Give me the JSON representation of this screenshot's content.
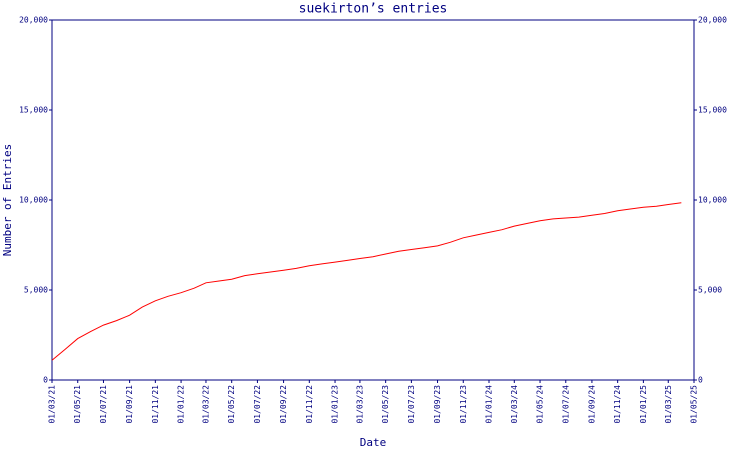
{
  "chart_data": {
    "type": "line",
    "title": "suekirton’s entries",
    "xlabel": "Date",
    "ylabel": "Number of Entries",
    "x": [
      "01/03/21",
      "01/04/21",
      "01/05/21",
      "01/06/21",
      "01/07/21",
      "01/08/21",
      "01/09/21",
      "01/10/21",
      "01/11/21",
      "01/12/21",
      "01/01/22",
      "01/02/22",
      "01/03/22",
      "01/04/22",
      "01/05/22",
      "01/06/22",
      "01/07/22",
      "01/08/22",
      "01/09/22",
      "01/10/22",
      "01/11/22",
      "01/12/22",
      "01/01/23",
      "01/02/23",
      "01/03/23",
      "01/04/23",
      "01/05/23",
      "01/06/23",
      "01/07/23",
      "01/08/23",
      "01/09/23",
      "01/10/23",
      "01/11/23",
      "01/12/23",
      "01/01/24",
      "01/02/24",
      "01/03/24",
      "01/04/24",
      "01/05/24",
      "01/06/24",
      "01/07/24",
      "01/08/24",
      "01/09/24",
      "01/10/24",
      "01/11/24",
      "01/12/24",
      "01/01/25",
      "01/02/25",
      "01/03/25",
      "01/04/25"
    ],
    "series": [
      {
        "name": "Entries",
        "color": "#ff0000",
        "values": [
          1100,
          1700,
          2300,
          2700,
          3050,
          3300,
          3600,
          4050,
          4400,
          4650,
          4850,
          5100,
          5400,
          5500,
          5600,
          5800,
          5900,
          6000,
          6100,
          6200,
          6350,
          6450,
          6550,
          6650,
          6750,
          6850,
          7000,
          7150,
          7250,
          7350,
          7450,
          7650,
          7900,
          8050,
          8200,
          8350,
          8550,
          8700,
          8850,
          8950,
          9000,
          9050,
          9150,
          9250,
          9400,
          9500,
          9600,
          9650,
          9750,
          9850
        ]
      }
    ],
    "xlim": [
      "01/03/21",
      "01/05/25"
    ],
    "xticks": [
      "01/03/21",
      "01/05/21",
      "01/07/21",
      "01/09/21",
      "01/11/21",
      "01/01/22",
      "01/03/22",
      "01/05/22",
      "01/07/22",
      "01/09/22",
      "01/11/22",
      "01/01/23",
      "01/03/23",
      "01/05/23",
      "01/07/23",
      "01/09/23",
      "01/11/23",
      "01/01/24",
      "01/03/24",
      "01/05/24",
      "01/07/24",
      "01/09/24",
      "01/11/24",
      "01/01/25",
      "01/03/25",
      "01/05/25"
    ],
    "ylim": [
      0,
      20000
    ],
    "yticks": [
      0,
      {
        "value": 5000,
        "label": "5,000"
      },
      {
        "value": 10000,
        "label": "10,000"
      },
      {
        "value": 15000,
        "label": "15,000"
      },
      {
        "value": 20000,
        "label": "20,000"
      }
    ],
    "grid": false
  }
}
